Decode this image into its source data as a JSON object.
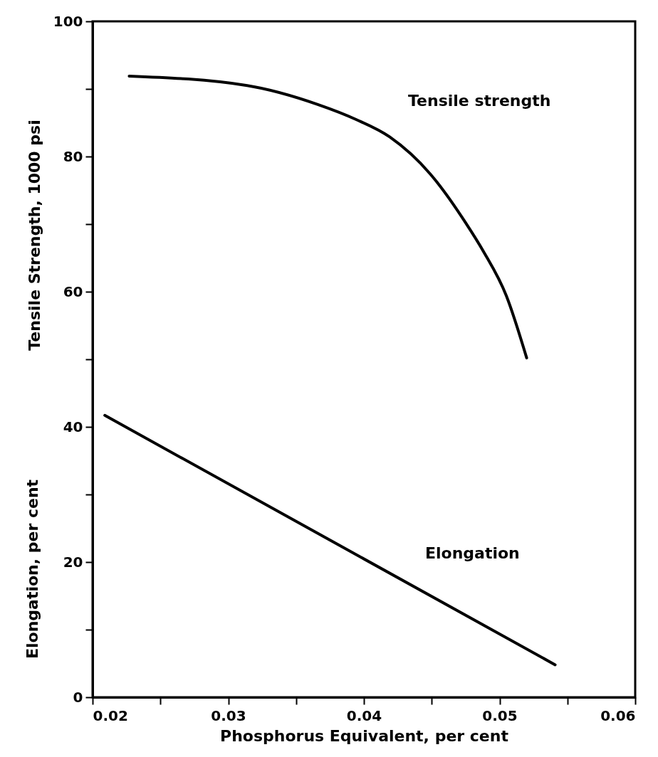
{
  "chart_data": {
    "type": "line",
    "xlabel": "Phosphorus Equivalent, per cent",
    "ylabel": "Tensile Strength, 1000 psi",
    "annotations": [
      "Elongation, per cent"
    ],
    "xlim": [
      0.02,
      0.06
    ],
    "xticks": [
      0.02,
      {
        "value": 0.025,
        "label": null
      },
      0.03,
      {
        "value": 0.035,
        "label": null
      },
      0.04,
      {
        "value": 0.045,
        "label": null
      },
      0.05,
      {
        "value": 0.055,
        "label": null
      },
      0.06
    ],
    "ylim": [
      0,
      100
    ],
    "yticks": [
      0,
      {
        "value": 10,
        "label": null
      },
      20,
      {
        "value": 30,
        "label": null
      },
      40,
      {
        "value": 50,
        "label": null
      },
      60,
      {
        "value": 70,
        "label": null
      },
      80,
      {
        "value": 90,
        "label": null
      },
      100
    ],
    "grid": false,
    "marker": "none",
    "line_style": "solid",
    "series": [
      {
        "name": "Tensile strength",
        "color": "#000000",
        "x": [
          0.0227,
          0.0314,
          0.0366,
          0.0394,
          0.0419,
          0.0449,
          0.0475,
          0.0488,
          0.0505,
          0.052
        ],
        "values": [
          91.9,
          90.5,
          87.7,
          85.5,
          82.9,
          77.4,
          70.2,
          66.0,
          59.4,
          50.2
        ]
      },
      {
        "name": "Elongation",
        "color": "#000000",
        "x": [
          0.0209,
          0.0541
        ],
        "values": [
          41.7,
          4.8
        ]
      }
    ]
  }
}
